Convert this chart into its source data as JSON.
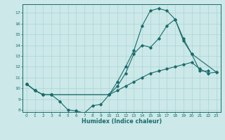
{
  "xlabel": "Humidex (Indice chaleur)",
  "bg_color": "#cce8e8",
  "line_color": "#1a6b6b",
  "grid_color": "#aad4d4",
  "xlim": [
    -0.5,
    23.5
  ],
  "ylim": [
    7.8,
    17.8
  ],
  "xticks": [
    0,
    1,
    2,
    3,
    4,
    5,
    6,
    7,
    8,
    9,
    10,
    11,
    12,
    13,
    14,
    15,
    16,
    17,
    18,
    19,
    20,
    21,
    22,
    23
  ],
  "yticks": [
    8,
    9,
    10,
    11,
    12,
    13,
    14,
    15,
    16,
    17
  ],
  "series": [
    {
      "x": [
        0,
        1,
        2,
        3,
        4,
        5,
        6,
        7,
        8,
        9,
        10,
        11,
        12,
        13,
        14,
        15,
        16,
        17,
        18,
        19,
        20,
        21,
        22
      ],
      "y": [
        10.4,
        9.8,
        9.4,
        9.4,
        8.8,
        8.0,
        7.9,
        7.7,
        8.4,
        8.5,
        9.4,
        10.6,
        12.0,
        13.5,
        15.8,
        17.2,
        17.4,
        17.2,
        16.4,
        14.4,
        13.2,
        11.6,
        11.6
      ]
    },
    {
      "x": [
        0,
        1,
        2,
        3,
        10,
        11,
        12,
        13,
        14,
        15,
        16,
        17,
        18,
        19,
        20,
        23
      ],
      "y": [
        10.4,
        9.8,
        9.4,
        9.4,
        9.4,
        10.2,
        11.4,
        13.2,
        14.0,
        13.8,
        14.6,
        15.8,
        16.4,
        14.6,
        13.2,
        11.5
      ]
    },
    {
      "x": [
        0,
        1,
        2,
        3,
        10,
        11,
        12,
        13,
        14,
        15,
        16,
        17,
        18,
        19,
        20,
        21,
        22,
        23
      ],
      "y": [
        10.4,
        9.8,
        9.4,
        9.4,
        9.4,
        9.8,
        10.2,
        10.6,
        11.0,
        11.4,
        11.6,
        11.8,
        12.0,
        12.2,
        12.4,
        11.8,
        11.4,
        11.5
      ]
    }
  ]
}
